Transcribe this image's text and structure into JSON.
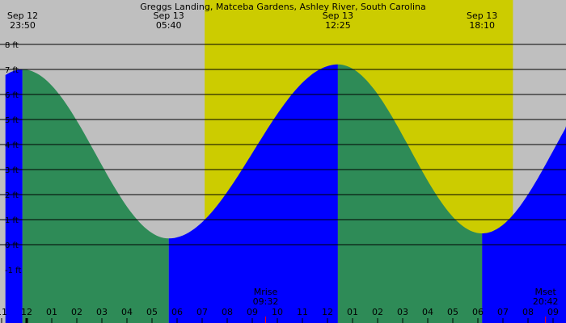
{
  "chart_data": {
    "type": "area",
    "title": "Greggs Landing, Matceba Gardens, Ashley River, South Carolina",
    "colors": {
      "night": "#bfbfbf",
      "day": "#cccc00",
      "rising": "#0000ff",
      "falling": "#2e8b57",
      "grid": "#000000",
      "moon_tick": "#ff0000"
    },
    "ylim": [
      -1.8,
      8.6
    ],
    "y_ticks": [
      {
        "value": 8,
        "label": "8 ft"
      },
      {
        "value": 7,
        "label": "7 ft"
      },
      {
        "value": 6,
        "label": "6 ft"
      },
      {
        "value": 5,
        "label": "5 ft"
      },
      {
        "value": 4,
        "label": "4 ft"
      },
      {
        "value": 3,
        "label": "3 ft"
      },
      {
        "value": 2,
        "label": "2 ft"
      },
      {
        "value": 1,
        "label": "1 ft"
      },
      {
        "value": 0,
        "label": "0 ft"
      },
      {
        "value": -1,
        "label": "-1 ft"
      }
    ],
    "xlim": [
      -0.85,
      21.6
    ],
    "x_ticks": [
      {
        "hour": -1,
        "label": "11"
      },
      {
        "hour": 0,
        "label": "12"
      },
      {
        "hour": 1,
        "label": "01"
      },
      {
        "hour": 2,
        "label": "02"
      },
      {
        "hour": 3,
        "label": "03"
      },
      {
        "hour": 4,
        "label": "04"
      },
      {
        "hour": 5,
        "label": "05"
      },
      {
        "hour": 6,
        "label": "06"
      },
      {
        "hour": 7,
        "label": "07"
      },
      {
        "hour": 8,
        "label": "08"
      },
      {
        "hour": 9,
        "label": "09"
      },
      {
        "hour": 10,
        "label": "10"
      },
      {
        "hour": 11,
        "label": "11"
      },
      {
        "hour": 12,
        "label": "12"
      },
      {
        "hour": 13,
        "label": "01"
      },
      {
        "hour": 14,
        "label": "02"
      },
      {
        "hour": 15,
        "label": "03"
      },
      {
        "hour": 16,
        "label": "04"
      },
      {
        "hour": 17,
        "label": "05"
      },
      {
        "hour": 18,
        "label": "06"
      },
      {
        "hour": 19,
        "label": "07"
      },
      {
        "hour": 20,
        "label": "08"
      },
      {
        "hour": 21,
        "label": "09"
      }
    ],
    "daylight": {
      "start_hour": 7.1,
      "end_hour": 19.4
    },
    "extremes": [
      {
        "date": "Sep 12",
        "time": "23:50",
        "hour": -0.167,
        "height": 7.0
      },
      {
        "date": "Sep 13",
        "time": "05:40",
        "hour": 5.667,
        "height": 0.25
      },
      {
        "date": "Sep 13",
        "time": "12:25",
        "hour": 12.417,
        "height": 7.2
      },
      {
        "date": "Sep 13",
        "time": "18:10",
        "hour": 18.167,
        "height": 0.45
      }
    ],
    "edge_points": [
      {
        "hour": -0.85,
        "height": 6.85
      },
      {
        "hour": 21.6,
        "height": 4.5
      }
    ],
    "moon_events": [
      {
        "label": "Mrise",
        "time": "09:32",
        "hour": 9.533
      },
      {
        "label": "Mset",
        "time": "20:42",
        "hour": 20.7
      }
    ]
  }
}
